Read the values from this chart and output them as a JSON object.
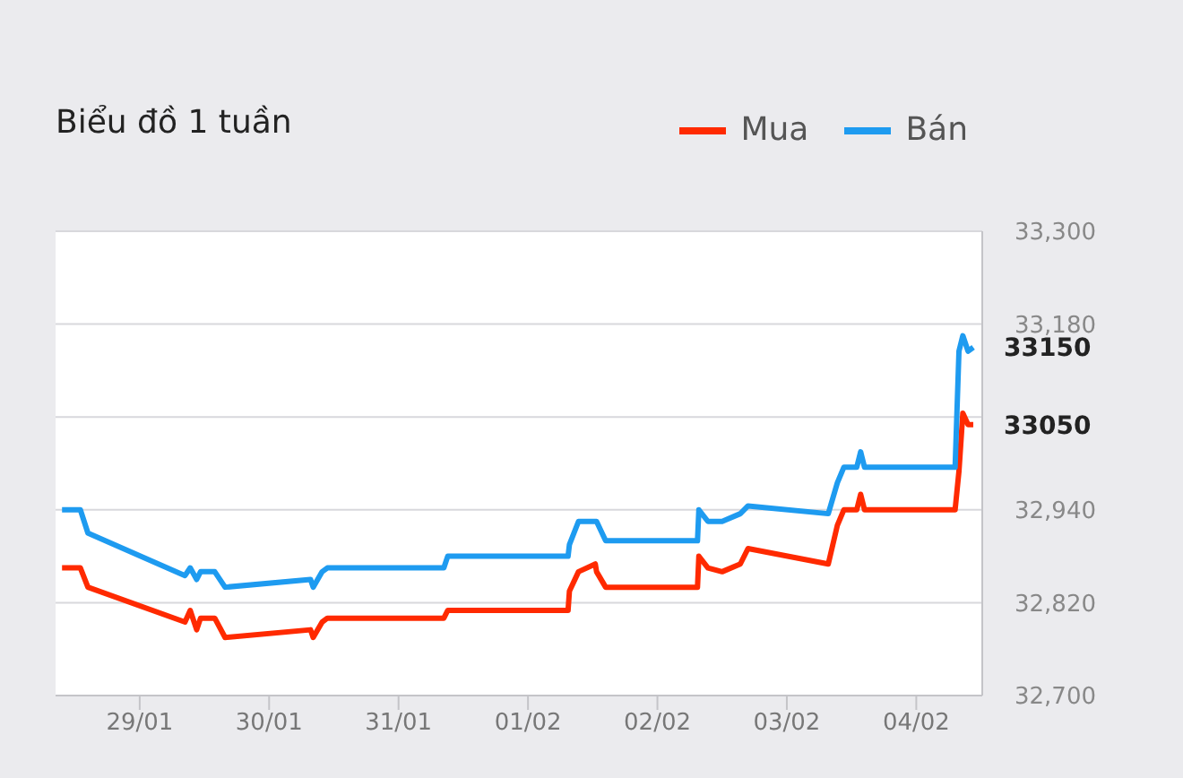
{
  "chart_data": {
    "type": "line",
    "title": "Biểu đồ 1 tuần",
    "xlim": [
      "--01-28T08:24",
      "--02-04T12:14"
    ],
    "xticks": [
      {
        "value": "--01-29",
        "label": "29/01"
      },
      {
        "value": "--01-30",
        "label": "30/01"
      },
      {
        "value": "--01-31",
        "label": "31/01"
      },
      {
        "value": "--02-01",
        "label": "01/02"
      },
      {
        "value": "--02-02",
        "label": "02/02"
      },
      {
        "value": "--02-03",
        "label": "03/02"
      },
      {
        "value": "--02-04",
        "label": "04/02"
      }
    ],
    "ylim": [
      32700,
      33300
    ],
    "yticks": [
      {
        "value": 32700,
        "label": "32,700"
      },
      {
        "value": 32820,
        "label": "32,820"
      },
      {
        "value": 32940,
        "label": "32,940"
      },
      {
        "value": 33060,
        "label": null
      },
      {
        "value": 33180,
        "label": "33,180"
      },
      {
        "value": 33300,
        "label": "33,300"
      }
    ],
    "grid": "y",
    "legend": "top right",
    "marker": "none",
    "line_style": "solid",
    "annotations": [
      "33050",
      "33150"
    ],
    "series": [
      {
        "name": "Mua",
        "color": "#ff2a00",
        "x": [
          "--01-28T09:36",
          "--01-28T13:00",
          "--01-28T14:24",
          "--01-29T08:24",
          "--01-29T09:22",
          "--01-29T10:34",
          "--01-29T11:17",
          "--01-29T13:55",
          "--01-29T15:50",
          "--01-30T07:41",
          "--01-30T08:10",
          "--01-30T09:50",
          "--01-30T10:48",
          "--01-31T08:24",
          "--01-31T09:07",
          "--02-01T07:26",
          "--02-01T07:41",
          "--02-01T09:22",
          "--02-01T12:29",
          "--02-01T12:43",
          "--02-01T14:24",
          "--02-02T07:26",
          "--02-02T07:41",
          "--02-02T09:22",
          "--02-02T12:00",
          "--02-02T15:22",
          "--02-02T16:48",
          "--02-03T07:41",
          "--02-03T09:22",
          "--02-03T10:34",
          "--02-03T12:58",
          "--02-03T13:41",
          "--02-03T14:24",
          "--02-04T07:12",
          "--02-04T07:55",
          "--02-04T08:38",
          "--02-04T09:36",
          "--02-04T10:34"
        ],
        "values": [
          32865,
          32865,
          32840,
          32795,
          32810,
          32785,
          32800,
          32800,
          32775,
          32785,
          32775,
          32795,
          32800,
          32800,
          32810,
          32810,
          32835,
          32860,
          32870,
          32860,
          32840,
          32840,
          32880,
          32865,
          32860,
          32870,
          32890,
          32870,
          32920,
          32940,
          32940,
          32960,
          32940,
          32940,
          32990,
          33065,
          33050,
          33050
        ]
      },
      {
        "name": "Bán",
        "color": "#1e9bf0",
        "x": [
          "--01-28T09:36",
          "--01-28T13:00",
          "--01-28T14:24",
          "--01-29T08:24",
          "--01-29T09:22",
          "--01-29T10:34",
          "--01-29T11:17",
          "--01-29T13:55",
          "--01-29T15:50",
          "--01-30T07:41",
          "--01-30T08:10",
          "--01-30T09:50",
          "--01-30T10:48",
          "--01-31T08:24",
          "--01-31T09:07",
          "--02-01T07:26",
          "--02-01T07:41",
          "--02-01T09:22",
          "--02-01T12:43",
          "--02-01T14:24",
          "--02-02T07:26",
          "--02-02T07:41",
          "--02-02T09:22",
          "--02-02T12:00",
          "--02-02T15:22",
          "--02-02T16:48",
          "--02-03T07:41",
          "--02-03T09:22",
          "--02-03T10:34",
          "--02-03T12:58",
          "--02-03T13:41",
          "--02-03T14:24",
          "--02-04T07:12",
          "--02-04T07:55",
          "--02-04T08:38",
          "--02-04T09:36",
          "--02-04T10:34"
        ],
        "values": [
          32940,
          32940,
          32910,
          32855,
          32865,
          32850,
          32860,
          32860,
          32840,
          32850,
          32840,
          32860,
          32865,
          32865,
          32880,
          32880,
          32895,
          32925,
          32925,
          32900,
          32900,
          32940,
          32925,
          32925,
          32935,
          32945,
          32935,
          32975,
          32995,
          32995,
          33015,
          32995,
          32995,
          33145,
          33165,
          33145,
          33150
        ]
      }
    ]
  }
}
